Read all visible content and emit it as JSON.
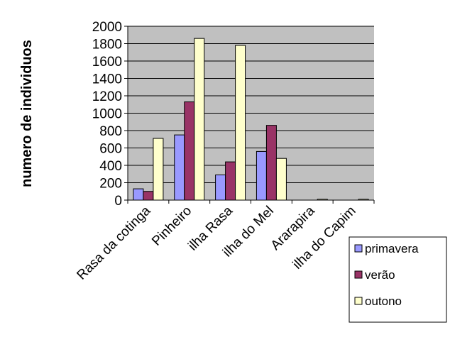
{
  "chart_data": {
    "type": "bar",
    "title": "",
    "xlabel": "",
    "ylabel": "numero de individuos",
    "ylim": [
      0,
      2000
    ],
    "yticks": [
      0,
      200,
      400,
      600,
      800,
      1000,
      1200,
      1400,
      1600,
      1800,
      2000
    ],
    "grid": true,
    "legend_position": "right",
    "categories": [
      "Rasa da cotinga",
      "Pinheiro",
      "ilha Rasa",
      "ilha do Mel",
      "Ararapira",
      "ilha do Capim"
    ],
    "series": [
      {
        "name": "primavera",
        "color": "#9999ff",
        "values": [
          130,
          750,
          290,
          560,
          0,
          0
        ]
      },
      {
        "name": "verão",
        "color": "#993366",
        "values": [
          100,
          1130,
          440,
          860,
          0,
          0
        ]
      },
      {
        "name": "outono",
        "color": "#ffffcc",
        "values": [
          710,
          1860,
          1780,
          480,
          10,
          10
        ]
      }
    ],
    "plot_background": "#c0c0c0"
  }
}
